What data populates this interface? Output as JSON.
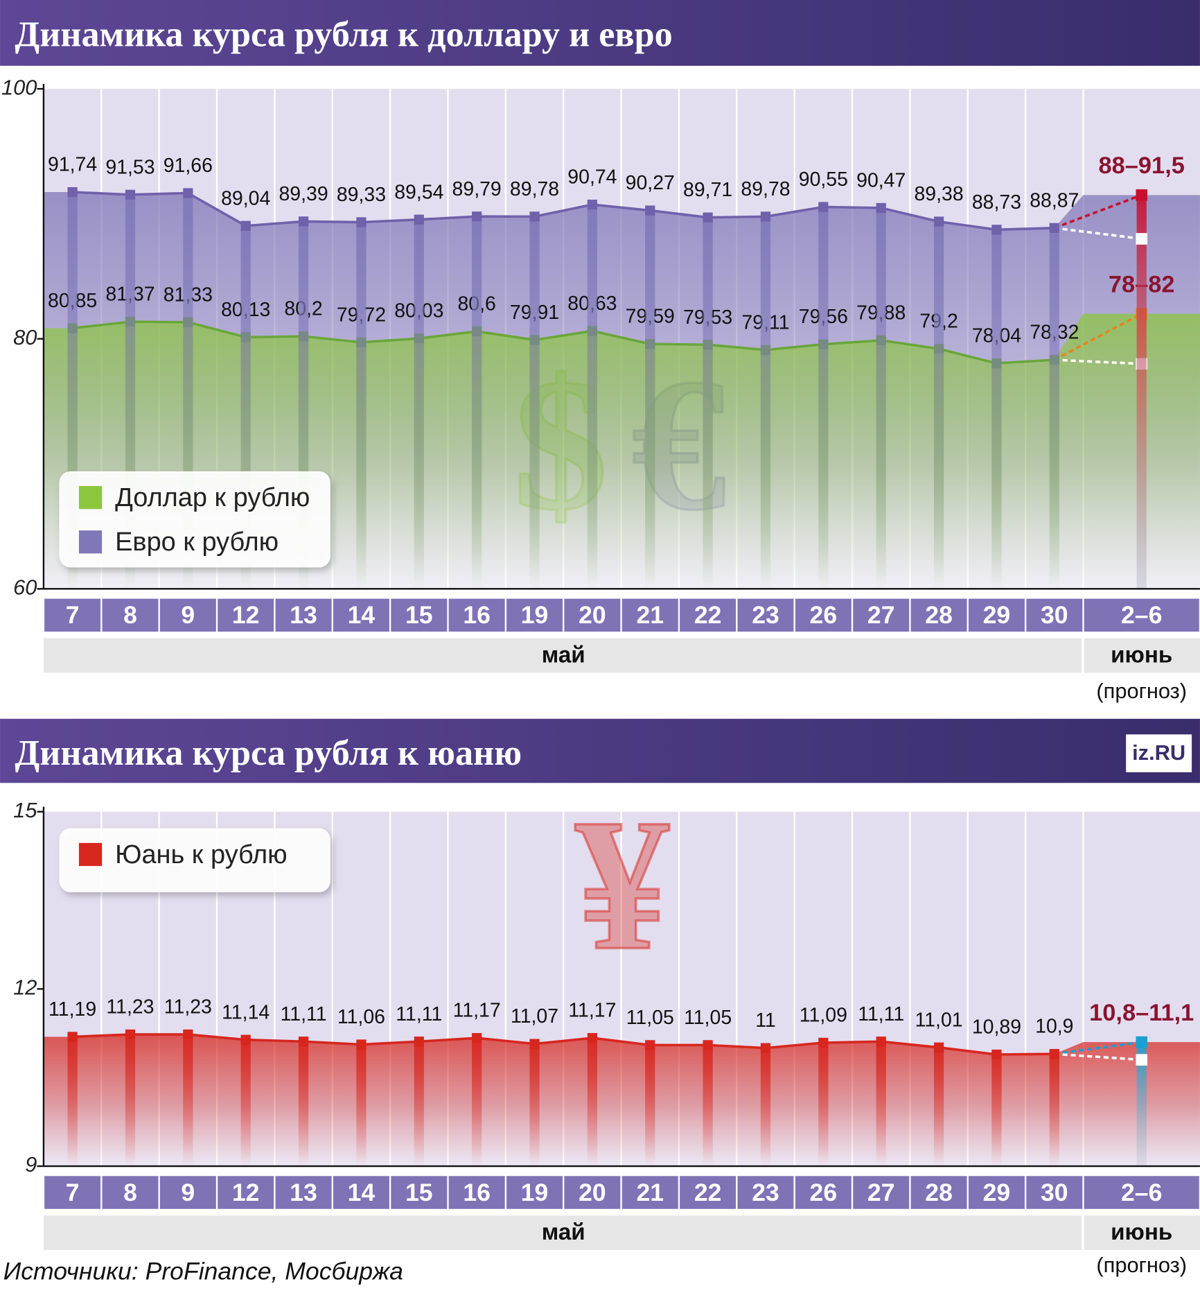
{
  "chart_data": [
    {
      "type": "line",
      "title": "Динамика курса рубля к доллару и евро",
      "categories": [
        "7",
        "8",
        "9",
        "12",
        "13",
        "14",
        "15",
        "16",
        "19",
        "20",
        "21",
        "22",
        "23",
        "26",
        "27",
        "28",
        "29",
        "30",
        "2–6"
      ],
      "month_labels": [
        "май",
        "июнь"
      ],
      "forecast_note": "(прогноз)",
      "ylim": [
        60,
        100
      ],
      "yticks": [
        60,
        80,
        100
      ],
      "symbols": [
        "$",
        "€"
      ],
      "series": [
        {
          "name": "Доллар к рублю",
          "color": "#8cc63f",
          "line_color": "#6aa63a",
          "forecast_color": "#e8821e",
          "values": [
            80.85,
            81.37,
            81.33,
            80.13,
            80.2,
            79.72,
            80.03,
            80.6,
            79.91,
            80.63,
            79.59,
            79.53,
            79.11,
            79.56,
            79.88,
            79.2,
            78.04,
            78.32,
            null
          ],
          "value_labels": [
            "80,85",
            "81,37",
            "81,33",
            "80,13",
            "80,2",
            "79,72",
            "80,03",
            "80,6",
            "79,91",
            "80,63",
            "79,59",
            "79,53",
            "79,11",
            "79,56",
            "79,88",
            "79,2",
            "78,04",
            "78,32",
            null
          ],
          "forecast": {
            "values": [
              78,
              82
            ],
            "label": "78–82"
          }
        },
        {
          "name": "Евро к рублю",
          "color": "#8077b8",
          "line_color": "#7061ab",
          "forecast_color": "#c8102e",
          "values": [
            91.74,
            91.53,
            91.66,
            89.04,
            89.39,
            89.33,
            89.54,
            89.79,
            89.78,
            90.74,
            90.27,
            89.71,
            89.78,
            90.55,
            90.47,
            89.38,
            88.73,
            88.87,
            null
          ],
          "value_labels": [
            "91,74",
            "91,53",
            "91,66",
            "89,04",
            "89,39",
            "89,33",
            "89,54",
            "89,79",
            "89,78",
            "90,74",
            "90,27",
            "89,71",
            "89,78",
            "90,55",
            "90,47",
            "89,38",
            "88,73",
            "88,87",
            null
          ],
          "forecast": {
            "values": [
              88,
              91.5
            ],
            "label": "88–91,5"
          }
        }
      ]
    },
    {
      "type": "line",
      "title": "Динамика курса рубля к юаню",
      "categories": [
        "7",
        "8",
        "9",
        "12",
        "13",
        "14",
        "15",
        "16",
        "19",
        "20",
        "21",
        "22",
        "23",
        "26",
        "27",
        "28",
        "29",
        "30",
        "2–6"
      ],
      "month_labels": [
        "май",
        "июнь"
      ],
      "forecast_note": "(прогноз)",
      "ylim": [
        9,
        15
      ],
      "yticks": [
        9,
        12,
        15
      ],
      "symbols": [
        "¥"
      ],
      "series": [
        {
          "name": "Юань к рублю",
          "color": "#d7261e",
          "line_color": "#d7261e",
          "forecast_color": "#1aa0d2",
          "values": [
            11.19,
            11.23,
            11.23,
            11.14,
            11.11,
            11.06,
            11.11,
            11.17,
            11.07,
            11.17,
            11.05,
            11.05,
            11,
            11.09,
            11.11,
            11.01,
            10.89,
            10.9,
            null
          ],
          "value_labels": [
            "11,19",
            "11,23",
            "11,23",
            "11,14",
            "11,11",
            "11,06",
            "11,11",
            "11,17",
            "11,07",
            "11,17",
            "11,05",
            "11,05",
            "11",
            "11,09",
            "11,11",
            "11,01",
            "10,89",
            "10,9",
            null
          ],
          "forecast": {
            "values": [
              10.8,
              11.1
            ],
            "label": "10,8–11,1"
          }
        }
      ]
    }
  ],
  "source": "Источники: ProFinance, Мосбиржа",
  "logo": "iz.RU"
}
